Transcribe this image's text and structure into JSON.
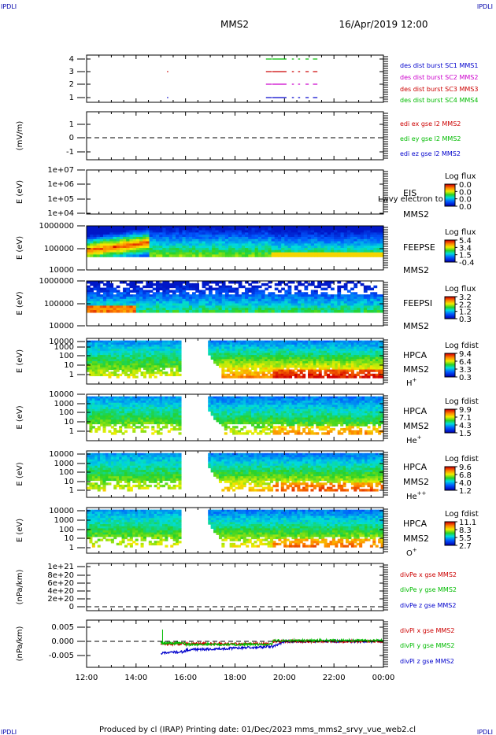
{
  "page": {
    "corner_label": "IPDLI",
    "mission": "MMS2",
    "datetime": "16/Apr/2019 12:00",
    "footer": "Produced by cl (IRAP)   Printing date: 01/Dec/2023   mms_mms2_srvy_vue_web2.cl"
  },
  "chart_data": [
    {
      "type": "line",
      "panel": "burst",
      "yticks": [
        "4",
        "3",
        "2",
        "1"
      ],
      "legend": [
        {
          "text": "des dist burst SC1 MMS1",
          "color": "#0000cc"
        },
        {
          "text": "des dist burst SC2 MMS2",
          "color": "#cc00cc"
        },
        {
          "text": "des dist burst SC3 MMS3",
          "color": "#cc0000"
        },
        {
          "text": "des dist burst SC4 MMS4",
          "color": "#00bb00"
        }
      ],
      "series": [
        {
          "name": "des dist burst SC4 MMS4",
          "level": 4,
          "color": "#00bb00",
          "intervals": [
            [
              19.25,
              19.45
            ],
            [
              19.5,
              20.05
            ],
            [
              20.3,
              20.35
            ],
            [
              20.55,
              20.6
            ],
            [
              20.85,
              20.95
            ],
            [
              21.15,
              21.3
            ]
          ]
        },
        {
          "name": "des dist burst SC3 MMS3",
          "level": 3,
          "color": "#cc0000",
          "intervals": [
            [
              15.25,
              15.27
            ],
            [
              19.25,
              19.45
            ],
            [
              19.5,
              20.05
            ],
            [
              20.3,
              20.35
            ],
            [
              20.55,
              20.6
            ],
            [
              20.85,
              20.95
            ],
            [
              21.15,
              21.3
            ]
          ]
        },
        {
          "name": "des dist burst SC2 MMS2",
          "level": 2,
          "color": "#cc00cc",
          "intervals": [
            [
              19.25,
              19.45
            ],
            [
              19.5,
              20.05
            ],
            [
              20.3,
              20.35
            ],
            [
              20.55,
              20.6
            ],
            [
              20.85,
              20.95
            ],
            [
              21.15,
              21.3
            ]
          ]
        },
        {
          "name": "des dist burst SC1 MMS1",
          "level": 1,
          "color": "#0000cc",
          "intervals": [
            [
              15.25,
              15.27
            ],
            [
              19.25,
              19.45
            ],
            [
              19.5,
              20.05
            ],
            [
              20.3,
              20.35
            ],
            [
              20.55,
              20.6
            ],
            [
              20.85,
              20.95
            ],
            [
              21.15,
              21.3
            ]
          ]
        }
      ]
    },
    {
      "type": "line",
      "panel": "edi",
      "ylabel": "(mV/m)",
      "yticks": [
        "1",
        "0",
        "-1"
      ],
      "legend": [
        {
          "text": "edi ex gse l2 MMS2",
          "color": "#cc0000"
        },
        {
          "text": "edi ey gse l2 MMS2",
          "color": "#00bb00"
        },
        {
          "text": "edi ez gse l2 MMS2",
          "color": "#0000cc"
        }
      ]
    },
    {
      "type": "heatmap",
      "panel": "eis",
      "ylabel": "E (eV)",
      "yticks": [
        "1e+07",
        "1e+06",
        "1e+05",
        "1e+04"
      ],
      "labels": [
        "EIS",
        "MMS2"
      ],
      "overlay_text": "Lwvy electron to",
      "colorbar": {
        "title": "Log flux",
        "ticks": [
          "0.0",
          "0.0",
          "0.0",
          "0.0"
        ]
      }
    },
    {
      "type": "heatmap",
      "panel": "feepse",
      "ylabel": "E (eV)",
      "yticks": [
        "1000000",
        "100000",
        "10000"
      ],
      "labels": [
        "FEEPSE",
        "MMS2"
      ],
      "colorbar": {
        "title": "Log flux",
        "ticks": [
          "5.4",
          "3.4",
          "1.5",
          "-0.4"
        ]
      }
    },
    {
      "type": "heatmap",
      "panel": "feepsi",
      "ylabel": "E (eV)",
      "yticks": [
        "1000000",
        "100000",
        "10000"
      ],
      "labels": [
        "FEEPSI",
        "MMS2"
      ],
      "colorbar": {
        "title": "Log flux",
        "ticks": [
          "3.2",
          "2.2",
          "1.2",
          "0.3"
        ]
      }
    },
    {
      "type": "heatmap",
      "panel": "hpca-h",
      "ylabel": "E (eV)",
      "yticks": [
        "10000",
        "1000",
        "100",
        "10",
        "1"
      ],
      "labels": [
        "HPCA",
        "MMS2",
        "H+"
      ],
      "colorbar": {
        "title": "Log fdist",
        "ticks": [
          "9.4",
          "6.4",
          "3.3",
          "0.3"
        ]
      }
    },
    {
      "type": "heatmap",
      "panel": "hpca-he",
      "ylabel": "E (eV)",
      "yticks": [
        "10000",
        "1000",
        "100",
        "10",
        "1"
      ],
      "labels": [
        "HPCA",
        "MMS2",
        "He+"
      ],
      "colorbar": {
        "title": "Log fdist",
        "ticks": [
          "9.9",
          "7.1",
          "4.3",
          "1.5"
        ]
      }
    },
    {
      "type": "heatmap",
      "panel": "hpca-hepp",
      "ylabel": "E (eV)",
      "yticks": [
        "10000",
        "1000",
        "100",
        "10",
        "1"
      ],
      "labels": [
        "HPCA",
        "MMS2",
        "He++"
      ],
      "colorbar": {
        "title": "Log fdist",
        "ticks": [
          "9.6",
          "6.8",
          "4.0",
          "1.2"
        ]
      }
    },
    {
      "type": "heatmap",
      "panel": "hpca-o",
      "ylabel": "E (eV)",
      "yticks": [
        "10000",
        "1000",
        "100",
        "10",
        "1"
      ],
      "labels": [
        "HPCA",
        "MMS2",
        "O+"
      ],
      "colorbar": {
        "title": "Log fdist",
        "ticks": [
          "11.1",
          "8.3",
          "5.5",
          "2.7"
        ]
      }
    },
    {
      "type": "line",
      "panel": "divpe",
      "ylabel": "(nPa/km)",
      "yticks": [
        "1e+21",
        "8e+20",
        "6e+20",
        "4e+20",
        "2e+20",
        "0"
      ],
      "legend": [
        {
          "text": "divPe x gse MMS2",
          "color": "#cc0000"
        },
        {
          "text": "divPe y gse MMS2",
          "color": "#00bb00"
        },
        {
          "text": "divPe z gse MMS2",
          "color": "#0000cc"
        }
      ]
    },
    {
      "type": "line",
      "panel": "divpi",
      "ylabel": "(nPa/km)",
      "yticks": [
        "0.005",
        "0.000",
        "-0.005"
      ],
      "xticks": [
        "12:00",
        "14:00",
        "16:00",
        "18:00",
        "20:00",
        "22:00",
        "00:00"
      ],
      "legend": [
        {
          "text": "divPi x gse MMS2",
          "color": "#cc0000"
        },
        {
          "text": "divPi y gse MMS2",
          "color": "#00bb00"
        },
        {
          "text": "divPi z gse MMS2",
          "color": "#0000cc"
        }
      ]
    }
  ]
}
